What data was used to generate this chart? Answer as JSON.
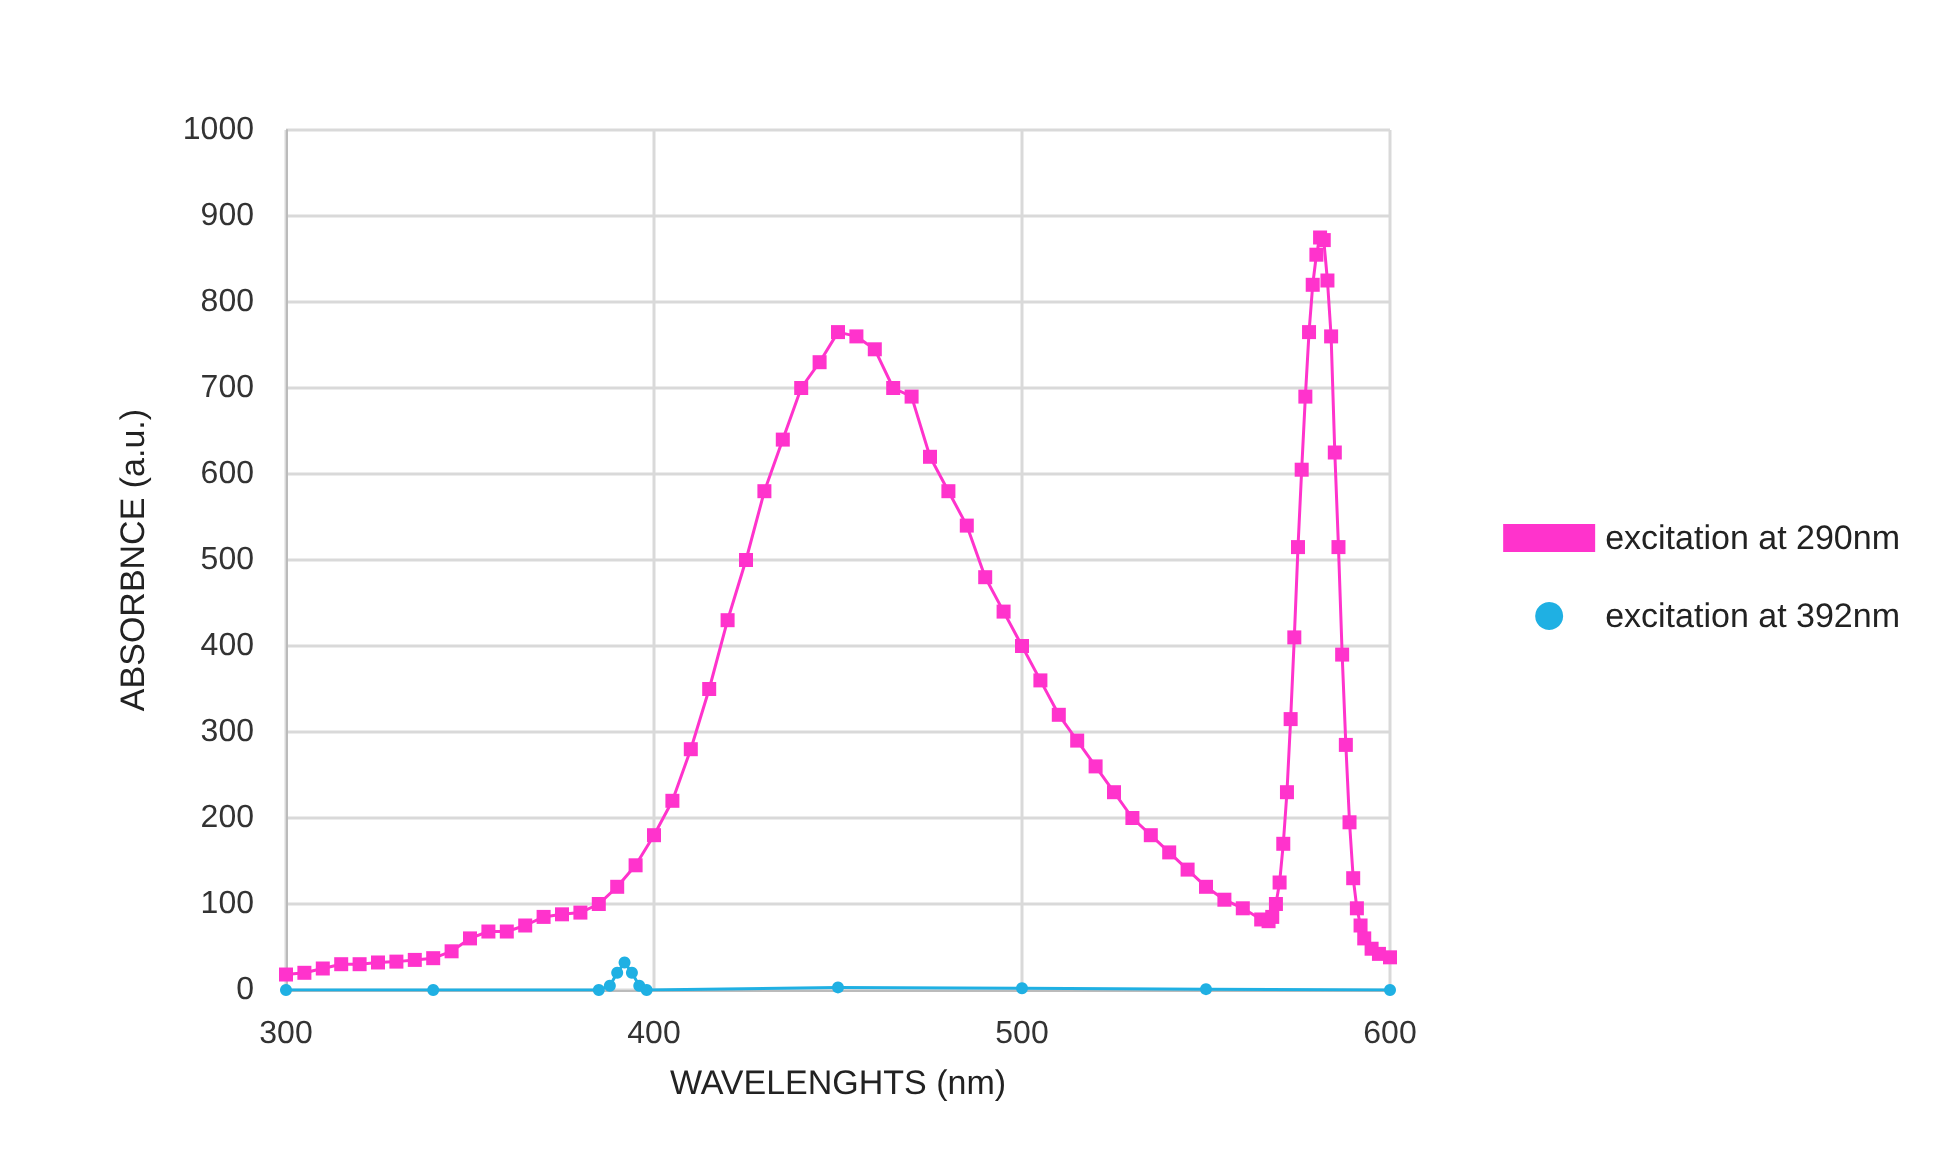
{
  "chart_data": {
    "type": "line",
    "xlabel": "WAVELENGHTS (nm)",
    "ylabel": "ABSORBNCE (a.u.)",
    "xlim": [
      300,
      600
    ],
    "xticks": [
      300,
      400,
      500,
      600
    ],
    "ylim": [
      0,
      1000
    ],
    "yticks": [
      0,
      100,
      200,
      300,
      400,
      500,
      600,
      700,
      800,
      900,
      1000
    ],
    "grid": true,
    "legend": "right",
    "series": [
      {
        "name": "excitation at 290nm",
        "color": "#ff33cc",
        "marker": "square",
        "x": [
          300,
          305,
          310,
          315,
          320,
          325,
          330,
          335,
          340,
          345,
          350,
          355,
          360,
          365,
          370,
          375,
          380,
          385,
          390,
          395,
          400,
          405,
          410,
          415,
          420,
          425,
          430,
          435,
          440,
          445,
          450,
          455,
          460,
          465,
          470,
          475,
          480,
          485,
          490,
          495,
          500,
          505,
          510,
          515,
          520,
          525,
          530,
          535,
          540,
          545,
          550,
          555,
          560,
          565,
          567,
          568,
          569,
          570,
          571,
          572,
          573,
          574,
          575,
          576,
          577,
          578,
          579,
          580,
          581,
          582,
          583,
          584,
          585,
          586,
          587,
          588,
          589,
          590,
          591,
          592,
          593,
          595,
          597,
          600
        ],
        "values": [
          18,
          20,
          25,
          30,
          30,
          32,
          33,
          35,
          37,
          45,
          60,
          68,
          68,
          75,
          85,
          88,
          90,
          100,
          120,
          145,
          180,
          220,
          280,
          350,
          430,
          500,
          580,
          640,
          700,
          730,
          765,
          760,
          745,
          700,
          690,
          620,
          580,
          540,
          480,
          440,
          400,
          360,
          320,
          290,
          260,
          230,
          200,
          180,
          160,
          140,
          120,
          105,
          95,
          82,
          80,
          85,
          100,
          125,
          170,
          230,
          315,
          410,
          515,
          605,
          690,
          765,
          820,
          855,
          875,
          872,
          825,
          760,
          625,
          515,
          390,
          285,
          195,
          130,
          95,
          75,
          60,
          48,
          42,
          38
        ]
      },
      {
        "name": "excitation at 392nm",
        "color": "#1fb0e3",
        "marker": "circle",
        "x": [
          300,
          340,
          385,
          388,
          390,
          392,
          394,
          396,
          398,
          450,
          500,
          550,
          600
        ],
        "values": [
          0,
          0,
          0,
          5,
          20,
          32,
          20,
          5,
          0,
          3,
          2,
          1,
          0
        ]
      }
    ]
  }
}
